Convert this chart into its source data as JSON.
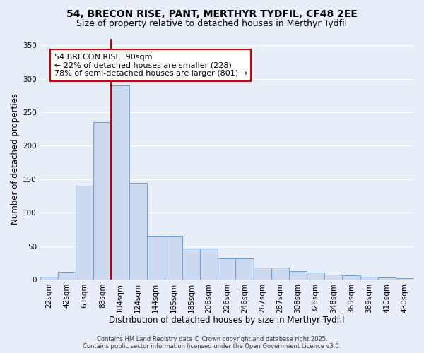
{
  "title1": "54, BRECON RISE, PANT, MERTHYR TYDFIL, CF48 2EE",
  "title2": "Size of property relative to detached houses in Merthyr Tydfil",
  "xlabel": "Distribution of detached houses by size in Merthyr Tydfil",
  "ylabel": "Number of detached properties",
  "categories": [
    "22sqm",
    "42sqm",
    "63sqm",
    "83sqm",
    "104sqm",
    "124sqm",
    "144sqm",
    "165sqm",
    "185sqm",
    "206sqm",
    "226sqm",
    "246sqm",
    "267sqm",
    "287sqm",
    "308sqm",
    "328sqm",
    "348sqm",
    "369sqm",
    "389sqm",
    "410sqm",
    "430sqm"
  ],
  "values": [
    4,
    11,
    140,
    235,
    290,
    145,
    65,
    65,
    46,
    46,
    31,
    31,
    18,
    18,
    13,
    10,
    7,
    6,
    4,
    3,
    2
  ],
  "bar_color": "#ccd9ee",
  "bar_edge_color": "#6a9fd0",
  "vline_x": 3.5,
  "vline_color": "#cc0000",
  "annotation_text": "54 BRECON RISE: 90sqm\n← 22% of detached houses are smaller (228)\n78% of semi-detached houses are larger (801) →",
  "annotation_box_facecolor": "#ffffff",
  "annotation_box_edgecolor": "#cc0000",
  "ylim": [
    0,
    360
  ],
  "yticks": [
    0,
    50,
    100,
    150,
    200,
    250,
    300,
    350
  ],
  "fig_bg_color": "#e8eef8",
  "ax_bg_color": "#e8eef8",
  "grid_color": "#ffffff",
  "footer": "Contains HM Land Registry data © Crown copyright and database right 2025.\nContains public sector information licensed under the Open Government Licence v3.0.",
  "title_fontsize": 10,
  "subtitle_fontsize": 9,
  "axis_label_fontsize": 8.5,
  "tick_fontsize": 7.5,
  "annotation_fontsize": 8,
  "footer_fontsize": 6
}
